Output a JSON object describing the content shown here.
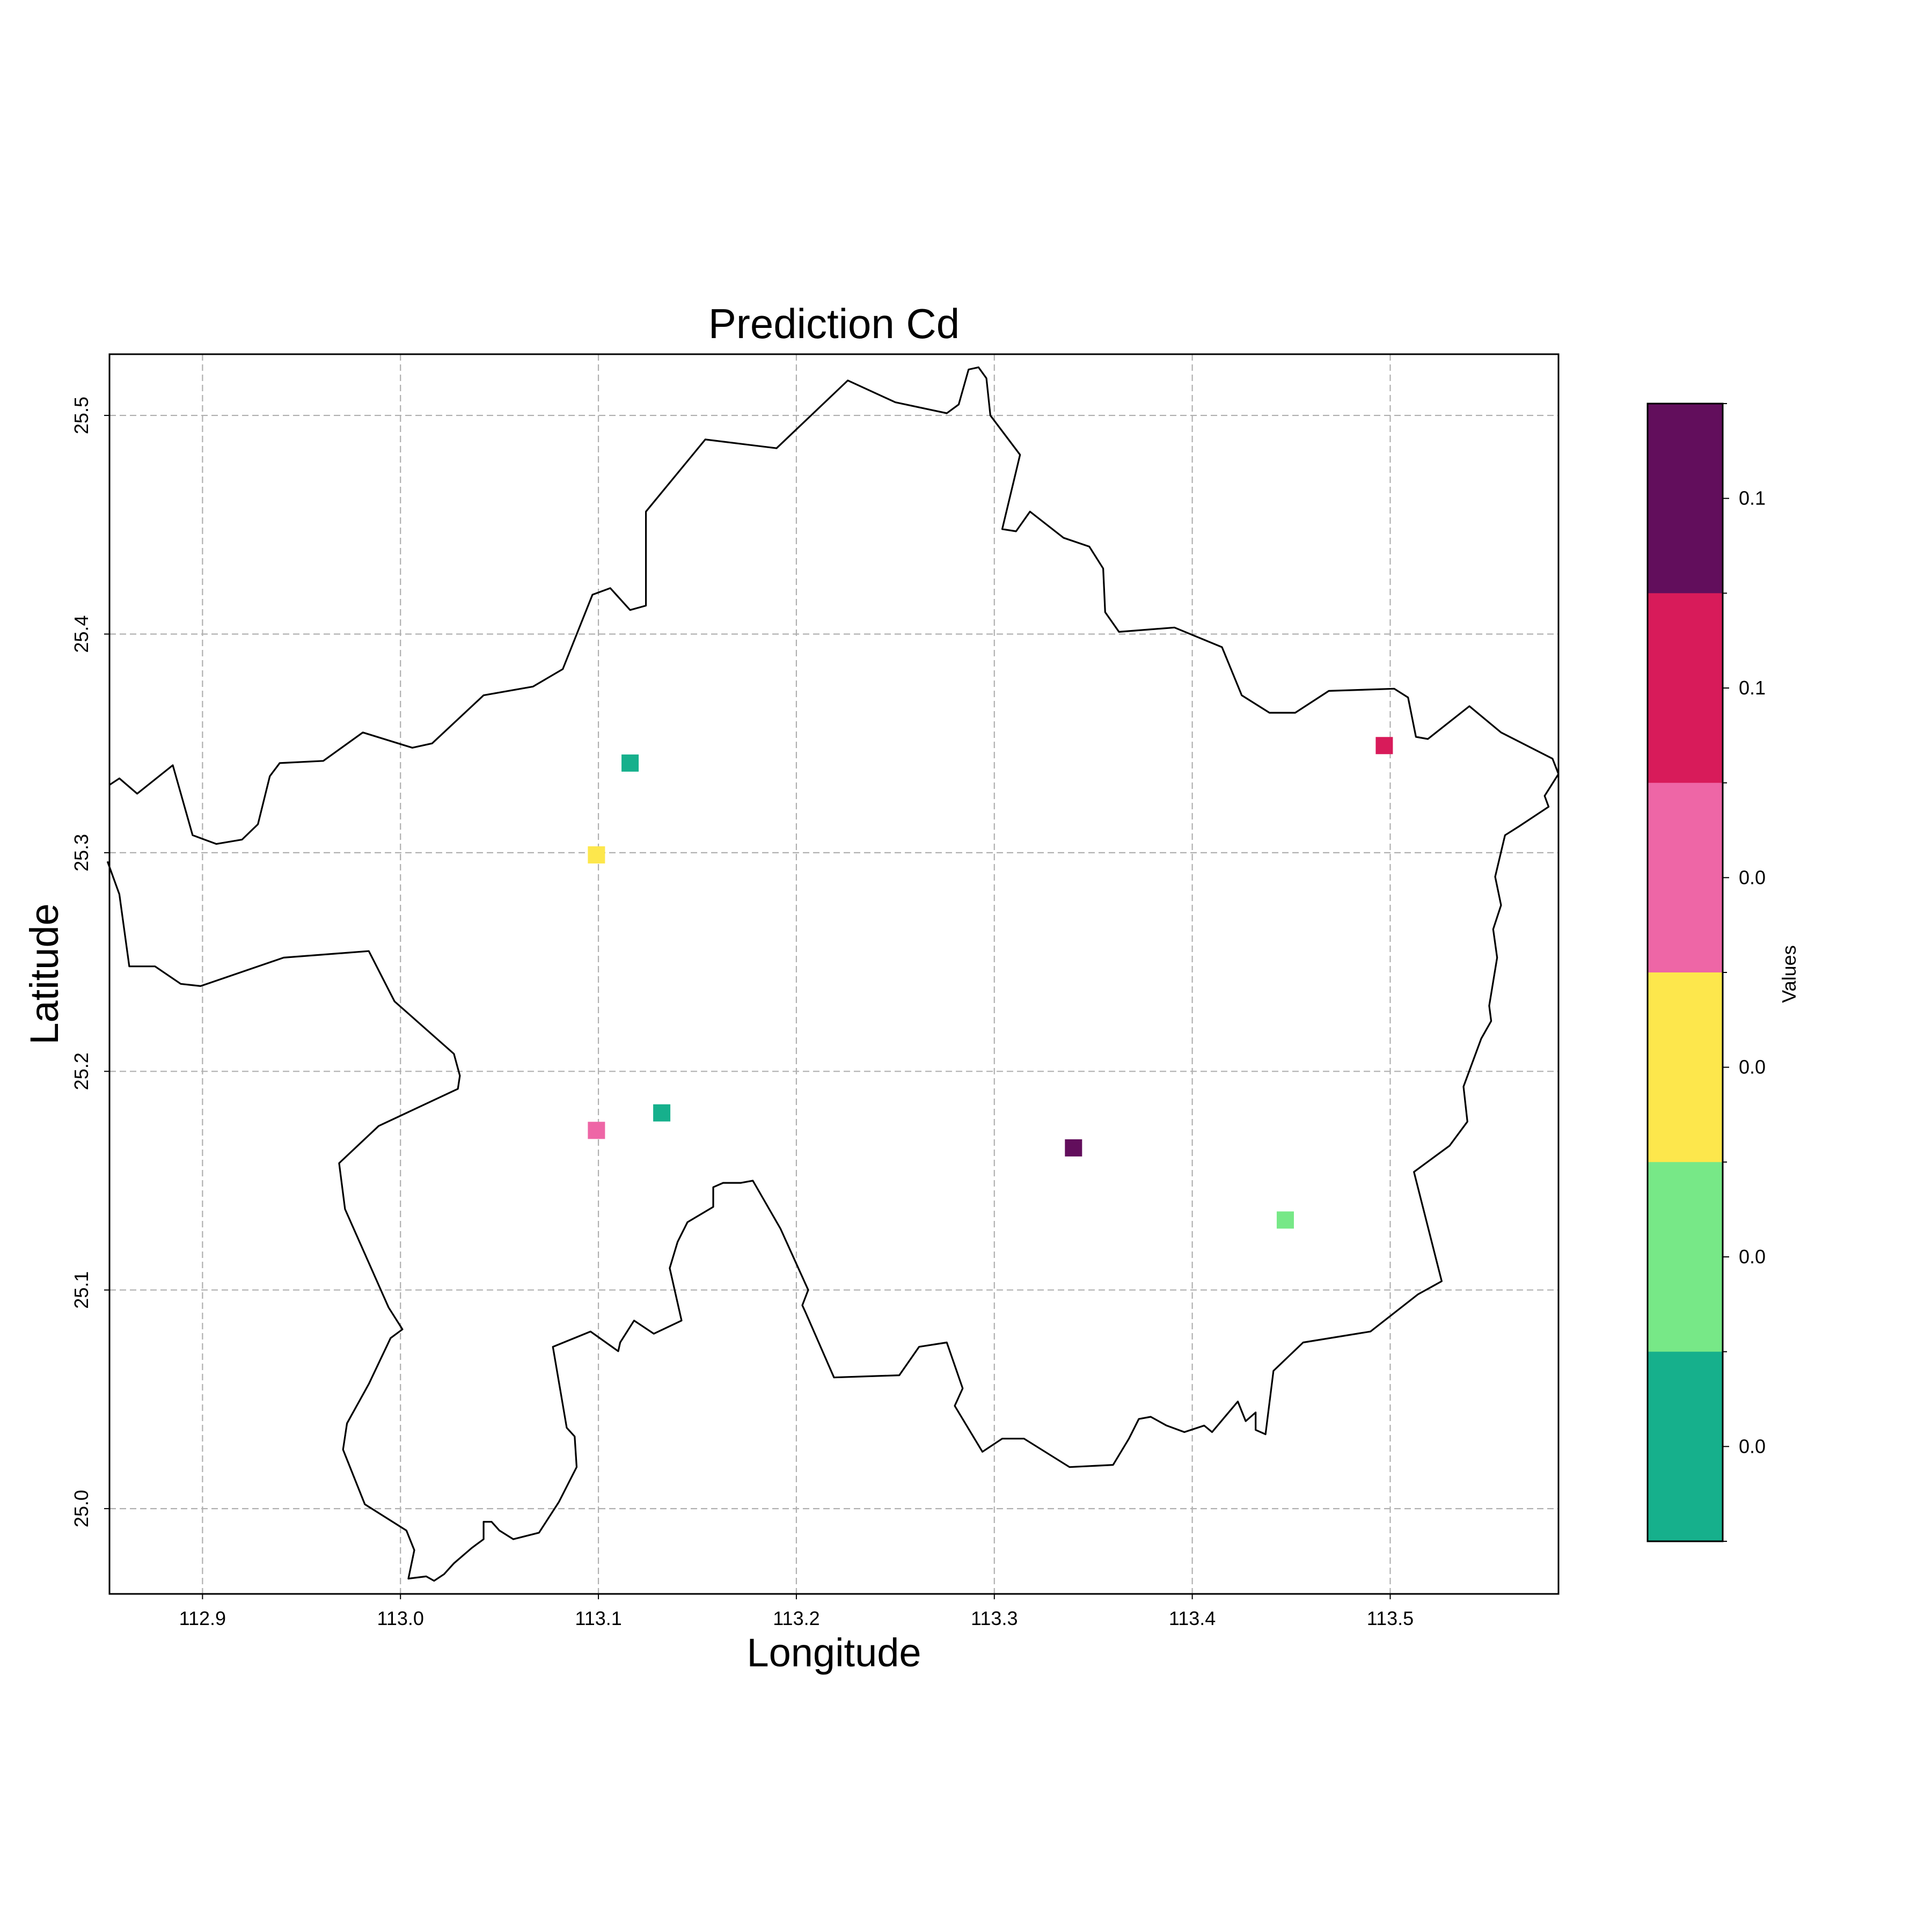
{
  "chart_data": {
    "type": "scatter",
    "title": "Prediction Cd",
    "xlabel": "Longitude",
    "ylabel": "Latitude",
    "xlim": [
      112.853,
      113.585
    ],
    "ylim": [
      24.961,
      25.528
    ],
    "xticks": [
      {
        "value": 112.9,
        "label": "112.9"
      },
      {
        "value": 113.0,
        "label": "113.0"
      },
      {
        "value": 113.1,
        "label": "113.1"
      },
      {
        "value": 113.2,
        "label": "113.2"
      },
      {
        "value": 113.3,
        "label": "113.3"
      },
      {
        "value": 113.4,
        "label": "113.4"
      },
      {
        "value": 113.5,
        "label": "113.5"
      }
    ],
    "yticks": [
      {
        "value": 25.0,
        "label": "25.0"
      },
      {
        "value": 25.1,
        "label": "25.1"
      },
      {
        "value": 25.2,
        "label": "25.2"
      },
      {
        "value": 25.3,
        "label": "25.3"
      },
      {
        "value": 25.4,
        "label": "25.4"
      },
      {
        "value": 25.5,
        "label": "25.5"
      }
    ],
    "grid": true,
    "boundary": [
      [
        112.853,
        25.331
      ],
      [
        112.858,
        25.334
      ],
      [
        112.867,
        25.327
      ],
      [
        112.885,
        25.34
      ],
      [
        112.895,
        25.308
      ],
      [
        112.907,
        25.304
      ],
      [
        112.92,
        25.306
      ],
      [
        112.928,
        25.313
      ],
      [
        112.934,
        25.335
      ],
      [
        112.939,
        25.341
      ],
      [
        112.961,
        25.342
      ],
      [
        112.981,
        25.355
      ],
      [
        113.006,
        25.348
      ],
      [
        113.016,
        25.35
      ],
      [
        113.042,
        25.372
      ],
      [
        113.067,
        25.376
      ],
      [
        113.082,
        25.384
      ],
      [
        113.097,
        25.418
      ],
      [
        113.106,
        25.421
      ],
      [
        113.116,
        25.411
      ],
      [
        113.124,
        25.413
      ],
      [
        113.124,
        25.456
      ],
      [
        113.154,
        25.489
      ],
      [
        113.19,
        25.485
      ],
      [
        113.226,
        25.516
      ],
      [
        113.25,
        25.506
      ],
      [
        113.276,
        25.501
      ],
      [
        113.282,
        25.505
      ],
      [
        113.287,
        25.521
      ],
      [
        113.292,
        25.522
      ],
      [
        113.296,
        25.517
      ],
      [
        113.298,
        25.5
      ],
      [
        113.313,
        25.482
      ],
      [
        113.304,
        25.448
      ],
      [
        113.311,
        25.447
      ],
      [
        113.318,
        25.456
      ],
      [
        113.335,
        25.444
      ],
      [
        113.348,
        25.44
      ],
      [
        113.355,
        25.43
      ],
      [
        113.356,
        25.41
      ],
      [
        113.363,
        25.401
      ],
      [
        113.391,
        25.403
      ],
      [
        113.415,
        25.394
      ],
      [
        113.425,
        25.372
      ],
      [
        113.439,
        25.364
      ],
      [
        113.452,
        25.364
      ],
      [
        113.469,
        25.374
      ],
      [
        113.502,
        25.375
      ],
      [
        113.509,
        25.371
      ],
      [
        113.513,
        25.353
      ],
      [
        113.519,
        25.352
      ],
      [
        113.54,
        25.367
      ],
      [
        113.556,
        25.355
      ],
      [
        113.582,
        25.343
      ],
      [
        113.585,
        25.336
      ],
      [
        113.578,
        25.326
      ],
      [
        113.58,
        25.321
      ],
      [
        113.565,
        25.312
      ],
      [
        113.558,
        25.308
      ],
      [
        113.553,
        25.289
      ],
      [
        113.556,
        25.276
      ],
      [
        113.552,
        25.265
      ],
      [
        113.554,
        25.252
      ],
      [
        113.55,
        25.23
      ],
      [
        113.551,
        25.223
      ],
      [
        113.546,
        25.215
      ],
      [
        113.537,
        25.193
      ],
      [
        113.539,
        25.177
      ],
      [
        113.53,
        25.166
      ],
      [
        113.512,
        25.154
      ],
      [
        113.526,
        25.104
      ],
      [
        113.514,
        25.098
      ],
      [
        113.49,
        25.081
      ],
      [
        113.456,
        25.076
      ],
      [
        113.441,
        25.063
      ],
      [
        113.437,
        25.034
      ],
      [
        113.432,
        25.036
      ],
      [
        113.432,
        25.044
      ],
      [
        113.427,
        25.04
      ],
      [
        113.423,
        25.049
      ],
      [
        113.41,
        25.035
      ],
      [
        113.406,
        25.038
      ],
      [
        113.396,
        25.035
      ],
      [
        113.387,
        25.038
      ],
      [
        113.379,
        25.042
      ],
      [
        113.373,
        25.041
      ],
      [
        113.368,
        25.032
      ],
      [
        113.36,
        25.02
      ],
      [
        113.338,
        25.019
      ],
      [
        113.315,
        25.032
      ],
      [
        113.304,
        25.032
      ],
      [
        113.294,
        25.026
      ],
      [
        113.28,
        25.047
      ],
      [
        113.284,
        25.055
      ],
      [
        113.276,
        25.076
      ],
      [
        113.262,
        25.074
      ],
      [
        113.252,
        25.061
      ],
      [
        113.219,
        25.06
      ],
      [
        113.205,
        25.089
      ],
      [
        113.203,
        25.093
      ],
      [
        113.206,
        25.1
      ],
      [
        113.192,
        25.128
      ],
      [
        113.178,
        25.15
      ],
      [
        113.172,
        25.149
      ],
      [
        113.163,
        25.149
      ],
      [
        113.158,
        25.147
      ],
      [
        113.158,
        25.138
      ],
      [
        113.145,
        25.131
      ],
      [
        113.14,
        25.122
      ],
      [
        113.136,
        25.11
      ],
      [
        113.142,
        25.086
      ],
      [
        113.128,
        25.08
      ],
      [
        113.118,
        25.086
      ],
      [
        113.111,
        25.076
      ],
      [
        113.11,
        25.072
      ],
      [
        113.096,
        25.081
      ],
      [
        113.077,
        25.074
      ],
      [
        113.084,
        25.037
      ],
      [
        113.088,
        25.033
      ],
      [
        113.089,
        25.019
      ],
      [
        113.08,
        25.003
      ],
      [
        113.07,
        24.989
      ],
      [
        113.057,
        24.986
      ],
      [
        113.05,
        24.99
      ],
      [
        113.046,
        24.994
      ],
      [
        113.042,
        24.994
      ],
      [
        113.042,
        24.986
      ],
      [
        113.036,
        24.982
      ],
      [
        113.027,
        24.975
      ],
      [
        113.022,
        24.97
      ],
      [
        113.017,
        24.967
      ],
      [
        113.013,
        24.969
      ],
      [
        113.004,
        24.968
      ],
      [
        113.007,
        24.981
      ],
      [
        113.003,
        24.99
      ],
      [
        112.982,
        25.002
      ],
      [
        112.971,
        25.027
      ],
      [
        112.973,
        25.039
      ],
      [
        112.984,
        25.057
      ],
      [
        112.995,
        25.078
      ],
      [
        113.001,
        25.082
      ],
      [
        112.994,
        25.092
      ],
      [
        112.972,
        25.137
      ],
      [
        112.969,
        25.158
      ],
      [
        112.989,
        25.175
      ],
      [
        113.029,
        25.192
      ],
      [
        113.03,
        25.198
      ],
      [
        113.027,
        25.208
      ],
      [
        112.997,
        25.232
      ],
      [
        112.984,
        25.255
      ],
      [
        112.941,
        25.252
      ],
      [
        112.899,
        25.239
      ],
      [
        112.889,
        25.24
      ],
      [
        112.876,
        25.248
      ],
      [
        112.863,
        25.248
      ],
      [
        112.858,
        25.281
      ],
      [
        112.852,
        25.296
      ]
    ],
    "points": [
      {
        "lon": 113.116,
        "lat": 25.341,
        "color": "#16b08c"
      },
      {
        "lon": 113.099,
        "lat": 25.299,
        "color": "#fde74c"
      },
      {
        "lon": 113.099,
        "lat": 25.173,
        "color": "#ee66a6"
      },
      {
        "lon": 113.132,
        "lat": 25.181,
        "color": "#16b08c"
      },
      {
        "lon": 113.34,
        "lat": 25.165,
        "color": "#620e5c"
      },
      {
        "lon": 113.497,
        "lat": 25.349,
        "color": "#d81b5a"
      },
      {
        "lon": 113.447,
        "lat": 25.132,
        "color": "#77e887"
      }
    ],
    "colorbar": {
      "title": "Values",
      "bins_top_to_bottom": [
        "#620e5c",
        "#d81b5a",
        "#ee66a6",
        "#fde74c",
        "#77e887",
        "#16b08c"
      ],
      "tick_labels_top_to_bottom": [
        "0.1",
        "0.1",
        "0.0",
        "0.0",
        "0.0",
        "0.0"
      ]
    }
  }
}
